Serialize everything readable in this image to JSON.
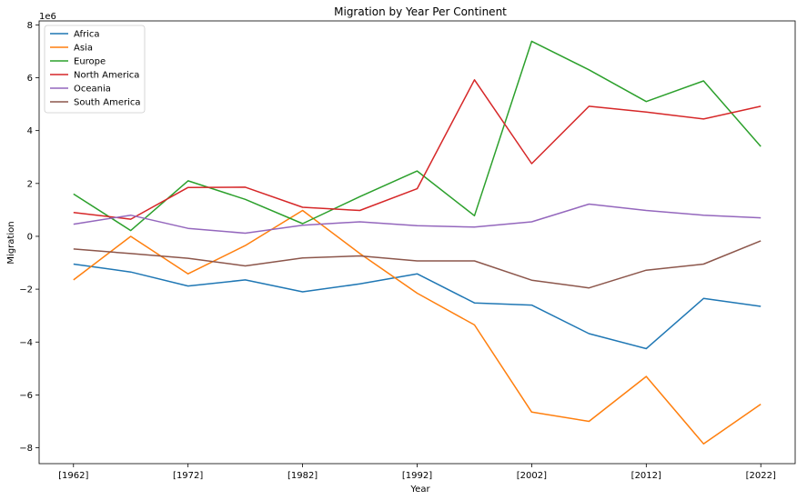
{
  "chart_data": {
    "type": "line",
    "title": "Migration by Year Per Continent",
    "xlabel": "Year",
    "ylabel": "Migration",
    "y_offset_label": "1e6",
    "x": [
      1962,
      1967,
      1972,
      1977,
      1982,
      1987,
      1992,
      1997,
      2002,
      2007,
      2012,
      2017,
      2022
    ],
    "x_tick_values": [
      1962,
      1972,
      1982,
      1992,
      2002,
      2012,
      2022
    ],
    "x_tick_labels": [
      "[1962]",
      "[1972]",
      "[1982]",
      "[1992]",
      "[2002]",
      "[2012]",
      "[2022]"
    ],
    "y_tick_values": [
      -8,
      -6,
      -4,
      -2,
      0,
      2,
      4,
      6,
      8
    ],
    "y_tick_labels": [
      "−8",
      "−6",
      "−4",
      "−2",
      "0",
      "2",
      "4",
      "6",
      "8"
    ],
    "xlim": [
      1959,
      2025
    ],
    "ylim": [
      -8.6,
      8.15
    ],
    "grid": false,
    "legend_position": "top-left",
    "series": [
      {
        "name": "Africa",
        "color": "#1f77b4",
        "values": [
          -1.05,
          -1.35,
          -1.88,
          -1.65,
          -2.1,
          -1.8,
          -1.42,
          -2.52,
          -2.6,
          -3.68,
          -4.25,
          -2.35,
          -2.65
        ]
      },
      {
        "name": "Asia",
        "color": "#ff7f0e",
        "values": [
          -1.65,
          0.0,
          -1.42,
          -0.35,
          0.98,
          -0.65,
          -2.15,
          -3.35,
          -6.65,
          -7.0,
          -5.3,
          -7.85,
          -6.35
        ]
      },
      {
        "name": "Europe",
        "color": "#2ca02c",
        "values": [
          1.6,
          0.22,
          2.1,
          1.4,
          0.48,
          1.5,
          2.47,
          0.78,
          7.38,
          6.3,
          5.1,
          5.88,
          3.4
        ]
      },
      {
        "name": "North America",
        "color": "#d62728",
        "values": [
          0.9,
          0.65,
          1.85,
          1.86,
          1.1,
          0.98,
          1.8,
          5.92,
          2.75,
          4.92,
          4.7,
          4.44,
          4.92
        ]
      },
      {
        "name": "Oceania",
        "color": "#9467bd",
        "values": [
          0.46,
          0.8,
          0.3,
          0.12,
          0.42,
          0.55,
          0.4,
          0.35,
          0.55,
          1.22,
          0.98,
          0.8,
          0.7
        ]
      },
      {
        "name": "South America",
        "color": "#8c564b",
        "values": [
          -0.48,
          -0.65,
          -0.83,
          -1.12,
          -0.82,
          -0.74,
          -0.93,
          -0.93,
          -1.66,
          -1.95,
          -1.28,
          -1.05,
          -0.17
        ]
      }
    ]
  }
}
